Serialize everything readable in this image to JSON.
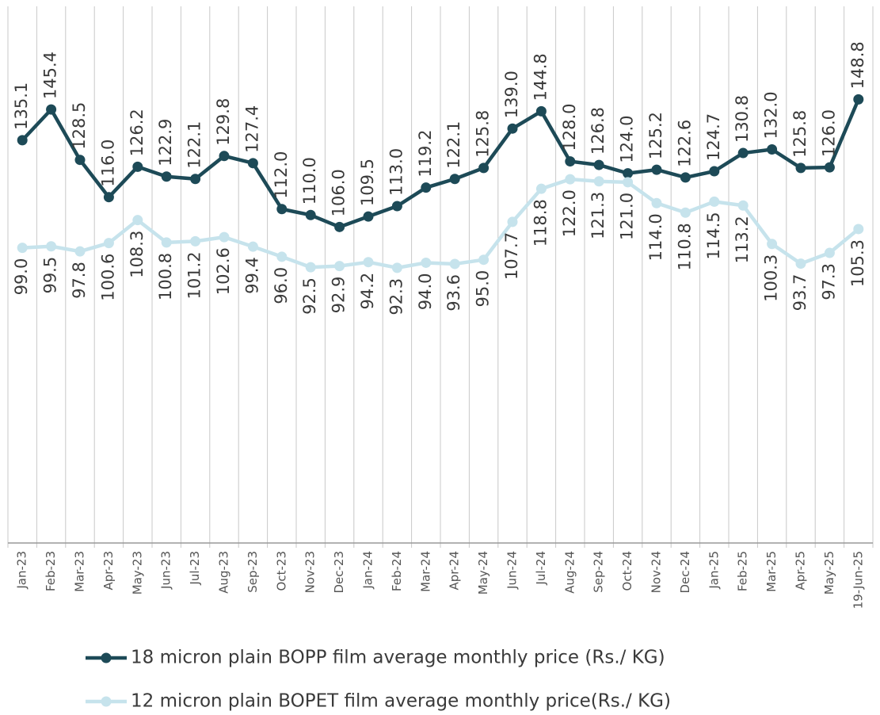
{
  "chart_data": {
    "type": "line",
    "categories": [
      "Jan-23",
      "Feb-23",
      "Mar-23",
      "Apr-23",
      "May-23",
      "Jun-23",
      "Jul-23",
      "Aug-23",
      "Sep-23",
      "Oct-23",
      "Nov-23",
      "Dec-23",
      "Jan-24",
      "Feb-24",
      "Mar-24",
      "Apr-24",
      "May-24",
      "Jun-24",
      "Jul-24",
      "Aug-24",
      "Sep-24",
      "Oct-24",
      "Nov-24",
      "Dec-24",
      "Jan-25",
      "Feb-25",
      "Mar-25",
      "Apr-25",
      "May-25",
      "19-Jun-25"
    ],
    "series": [
      {
        "name": "18 micron plain BOPP film average monthly price (Rs./ KG)",
        "color": "#1d4a57",
        "values": [
          135.1,
          145.4,
          128.5,
          116.0,
          126.2,
          122.9,
          122.1,
          129.8,
          127.4,
          112.0,
          110.0,
          106.0,
          109.5,
          113.0,
          119.2,
          122.1,
          125.8,
          139.0,
          144.8,
          128.0,
          126.8,
          124.0,
          125.2,
          122.6,
          124.7,
          130.8,
          132.0,
          125.8,
          126.0,
          148.8
        ],
        "value_labels": [
          "135.1",
          "145.4",
          "128.5",
          "116.0",
          "126.2",
          "122.9",
          "122.1",
          "129.8",
          "127.4",
          "112.0",
          "110.0",
          "106.0",
          "109.5",
          "113.0",
          "119.2",
          "122.1",
          "125.8",
          "139.0",
          "144.8",
          "128.0",
          "126.8",
          "124.0",
          "125.2",
          "122.6",
          "124.7",
          "130.8",
          "132.0",
          "125.8",
          "126.0",
          "148.8"
        ]
      },
      {
        "name": "12 micron plain BOPET film average monthly price(Rs./ KG)",
        "color": "#c6e3ec",
        "values": [
          99.0,
          99.5,
          97.8,
          100.6,
          108.3,
          100.8,
          101.2,
          102.6,
          99.4,
          96.0,
          92.5,
          92.9,
          94.2,
          92.3,
          94.0,
          93.6,
          95.0,
          107.7,
          118.8,
          122.0,
          121.3,
          121.0,
          114.0,
          110.8,
          114.5,
          113.2,
          100.3,
          93.7,
          97.3,
          105.3
        ],
        "value_labels": [
          "99.0",
          "99.5",
          "97.8",
          "100.6",
          "108.3",
          "100.8",
          "101.2",
          "102.6",
          "99.4",
          "96.0",
          "92.5",
          "92.9",
          "94.2",
          "92.3",
          "94.0",
          "93.6",
          "95.0",
          "107.7",
          "118.8",
          "122.0",
          "121.3",
          "121.0",
          "114.0",
          "110.8",
          "114.5",
          "113.2",
          "100.3",
          "93.7",
          "97.3",
          "105.3"
        ]
      }
    ],
    "ylim": [
      0,
      180
    ]
  }
}
